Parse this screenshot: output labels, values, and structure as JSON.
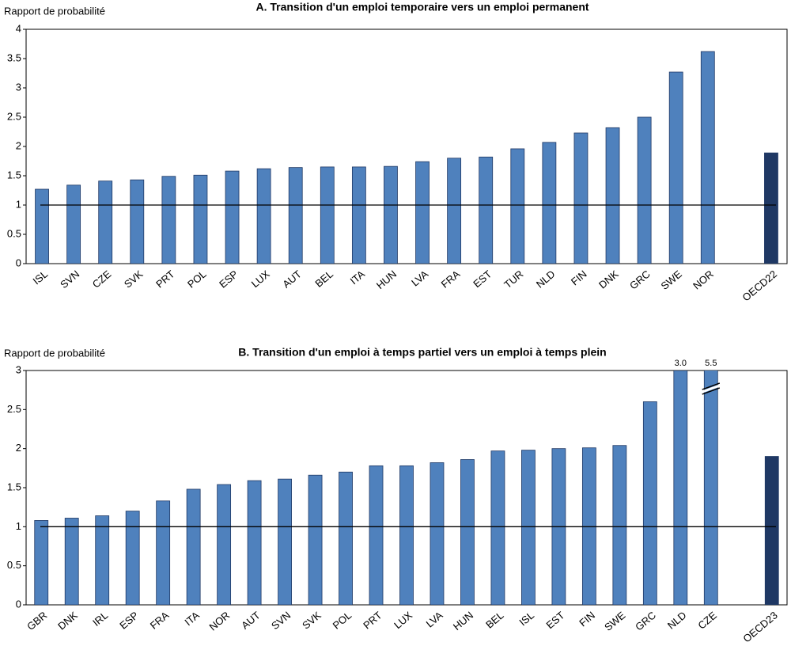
{
  "chart_data": [
    {
      "type": "bar",
      "title": "A. Transition d'un emploi temporaire vers un emploi permanent",
      "ylabel": "Rapport de probabilité",
      "categories": [
        "ISL",
        "SVN",
        "CZE",
        "SVK",
        "PRT",
        "POL",
        "ESP",
        "LUX",
        "AUT",
        "BEL",
        "ITA",
        "HUN",
        "LVA",
        "FRA",
        "EST",
        "TUR",
        "NLD",
        "FIN",
        "DNK",
        "GRC",
        "SWE",
        "NOR",
        null,
        "OECD22"
      ],
      "values": [
        1.27,
        1.34,
        1.41,
        1.43,
        1.49,
        1.51,
        1.58,
        1.62,
        1.64,
        1.65,
        1.65,
        1.66,
        1.74,
        1.8,
        1.82,
        1.96,
        2.07,
        2.23,
        2.32,
        2.5,
        3.27,
        3.62,
        null,
        1.89
      ],
      "colors": [
        "#4f81bd",
        "#4f81bd",
        "#4f81bd",
        "#4f81bd",
        "#4f81bd",
        "#4f81bd",
        "#4f81bd",
        "#4f81bd",
        "#4f81bd",
        "#4f81bd",
        "#4f81bd",
        "#4f81bd",
        "#4f81bd",
        "#4f81bd",
        "#4f81bd",
        "#4f81bd",
        "#4f81bd",
        "#4f81bd",
        "#4f81bd",
        "#4f81bd",
        "#4f81bd",
        "#4f81bd",
        null,
        "#1f3864"
      ],
      "ylim": [
        0,
        4
      ],
      "yticks": [
        0,
        0.5,
        1,
        1.5,
        2,
        2.5,
        3,
        3.5,
        4
      ],
      "reference_line": 1
    },
    {
      "type": "bar",
      "title": "B. Transition d'un emploi à temps partiel vers un emploi à temps plein",
      "ylabel": "Rapport de probabilité",
      "categories": [
        "GBR",
        "DNK",
        "IRL",
        "ESP",
        "FRA",
        "ITA",
        "NOR",
        "AUT",
        "SVN",
        "SVK",
        "POL",
        "PRT",
        "LUX",
        "LVA",
        "HUN",
        "BEL",
        "ISL",
        "EST",
        "FIN",
        "SWE",
        "GRC",
        "NLD",
        "CZE",
        null,
        "OECD23"
      ],
      "values": [
        1.08,
        1.11,
        1.14,
        1.2,
        1.33,
        1.48,
        1.54,
        1.59,
        1.61,
        1.66,
        1.7,
        1.78,
        1.78,
        1.82,
        1.86,
        1.97,
        1.98,
        2.0,
        2.01,
        2.04,
        2.6,
        3.0,
        5.5,
        null,
        1.9
      ],
      "value_labels": [
        null,
        null,
        null,
        null,
        null,
        null,
        null,
        null,
        null,
        null,
        null,
        null,
        null,
        null,
        null,
        null,
        null,
        null,
        null,
        null,
        null,
        "3.0",
        "5.5",
        null,
        null
      ],
      "colors": [
        "#4f81bd",
        "#4f81bd",
        "#4f81bd",
        "#4f81bd",
        "#4f81bd",
        "#4f81bd",
        "#4f81bd",
        "#4f81bd",
        "#4f81bd",
        "#4f81bd",
        "#4f81bd",
        "#4f81bd",
        "#4f81bd",
        "#4f81bd",
        "#4f81bd",
        "#4f81bd",
        "#4f81bd",
        "#4f81bd",
        "#4f81bd",
        "#4f81bd",
        "#4f81bd",
        "#4f81bd",
        "#4f81bd",
        null,
        "#1f3864"
      ],
      "ylim": [
        0,
        3
      ],
      "yticks": [
        0,
        0.5,
        1,
        1.5,
        2,
        2.5,
        3
      ],
      "reference_line": 1
    }
  ]
}
